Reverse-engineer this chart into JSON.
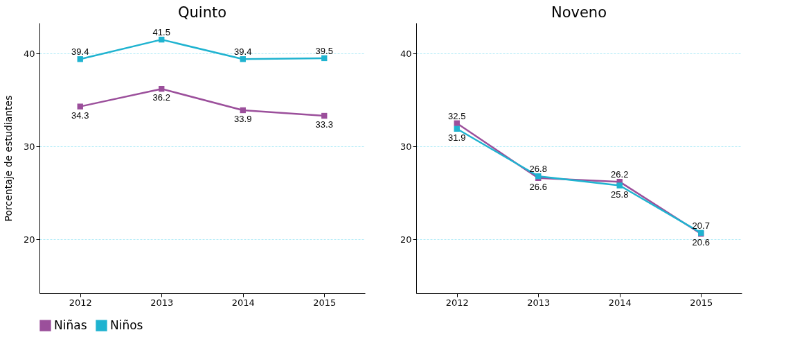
{
  "chart_data": [
    {
      "type": "line",
      "title": "Quinto",
      "ylabel": "Porcentaje de estudiantes",
      "categories": [
        "2012",
        "2013",
        "2014",
        "2015"
      ],
      "series": [
        {
          "name": "Niñas",
          "color": "#9b4f9b",
          "values": [
            34.3,
            36.2,
            33.9,
            33.3
          ]
        },
        {
          "name": "Niños",
          "color": "#1fb3d0",
          "values": [
            39.4,
            41.5,
            39.4,
            39.5
          ]
        }
      ],
      "ylim": [
        14.2,
        43.3
      ],
      "yticks": [
        20,
        30,
        40
      ],
      "grid": "y",
      "legend": "bottom",
      "marker": "square",
      "data_labels": true
    },
    {
      "type": "line",
      "title": "Noveno",
      "categories": [
        "2012",
        "2013",
        "2014",
        "2015"
      ],
      "series": [
        {
          "name": "Niñas",
          "color": "#9b4f9b",
          "values": [
            32.5,
            26.6,
            26.2,
            20.6
          ]
        },
        {
          "name": "Niños",
          "color": "#1fb3d0",
          "values": [
            31.9,
            26.8,
            25.8,
            20.7
          ]
        }
      ],
      "ylim": [
        14.2,
        43.3
      ],
      "yticks": [
        20,
        30,
        40
      ],
      "grid": "y",
      "legend": "bottom",
      "marker": "square",
      "data_labels": true
    }
  ]
}
